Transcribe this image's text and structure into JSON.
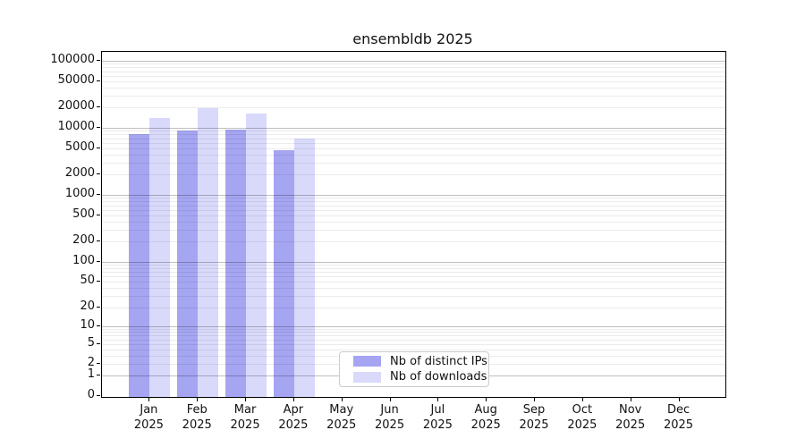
{
  "chart_data": {
    "type": "bar",
    "title": "ensembldb 2025",
    "y_scale": "log1p",
    "grid": "both",
    "months": [
      "Jan",
      "Feb",
      "Mar",
      "Apr",
      "May",
      "Jun",
      "Jul",
      "Aug",
      "Sep",
      "Oct",
      "Nov",
      "Dec"
    ],
    "year_label": "2025",
    "series": [
      {
        "name": "Nb of distinct IPs",
        "color": "#a5a5f2",
        "values": [
          8000,
          9200,
          9500,
          4600,
          null,
          null,
          null,
          null,
          null,
          null,
          null,
          null
        ]
      },
      {
        "name": "Nb of downloads",
        "color": "#d9d9fb",
        "values": [
          14000,
          19500,
          16500,
          7000,
          null,
          null,
          null,
          null,
          null,
          null,
          null,
          null
        ]
      }
    ],
    "y_ticks": [
      0,
      1,
      2,
      5,
      10,
      20,
      50,
      100,
      200,
      500,
      1000,
      2000,
      5000,
      10000,
      20000,
      50000,
      100000
    ],
    "y_major_ticks": [
      1,
      10,
      100,
      1000,
      10000,
      100000
    ],
    "ylim": [
      0,
      135000
    ],
    "legend_position": "lower center inside"
  },
  "colors": {
    "bar_distinct_ips": "#a5a5f2",
    "bar_downloads": "#d9d9fb",
    "grid_major": "rgba(0,0,0,0.25)",
    "grid_minor": "rgba(0,0,0,0.08)",
    "axis": "#000000",
    "legend_border": "#cccccc"
  }
}
